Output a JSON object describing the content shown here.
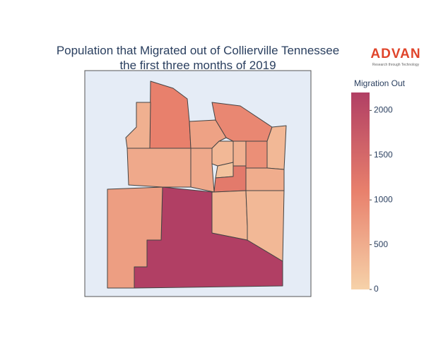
{
  "chart_data": {
    "type": "choropleth",
    "title": "Population that Migrated out of Collierville Tennessee",
    "subtitle": "the first three months of 2019",
    "colorbar_title": "Migration Out",
    "zlim": [
      0,
      2200
    ],
    "zticks": [
      0,
      500,
      1000,
      1500,
      2000
    ],
    "colors": [
      "#f6d2a9",
      "#e8806c",
      "#b13f64"
    ],
    "values": [
      2200,
      700,
      1100,
      450,
      550,
      1000,
      650,
      550,
      350,
      200,
      450,
      1200,
      900,
      350,
      500,
      400,
      350
    ],
    "logo": "ADVAN",
    "logo_tagline": "Research through Technology"
  }
}
